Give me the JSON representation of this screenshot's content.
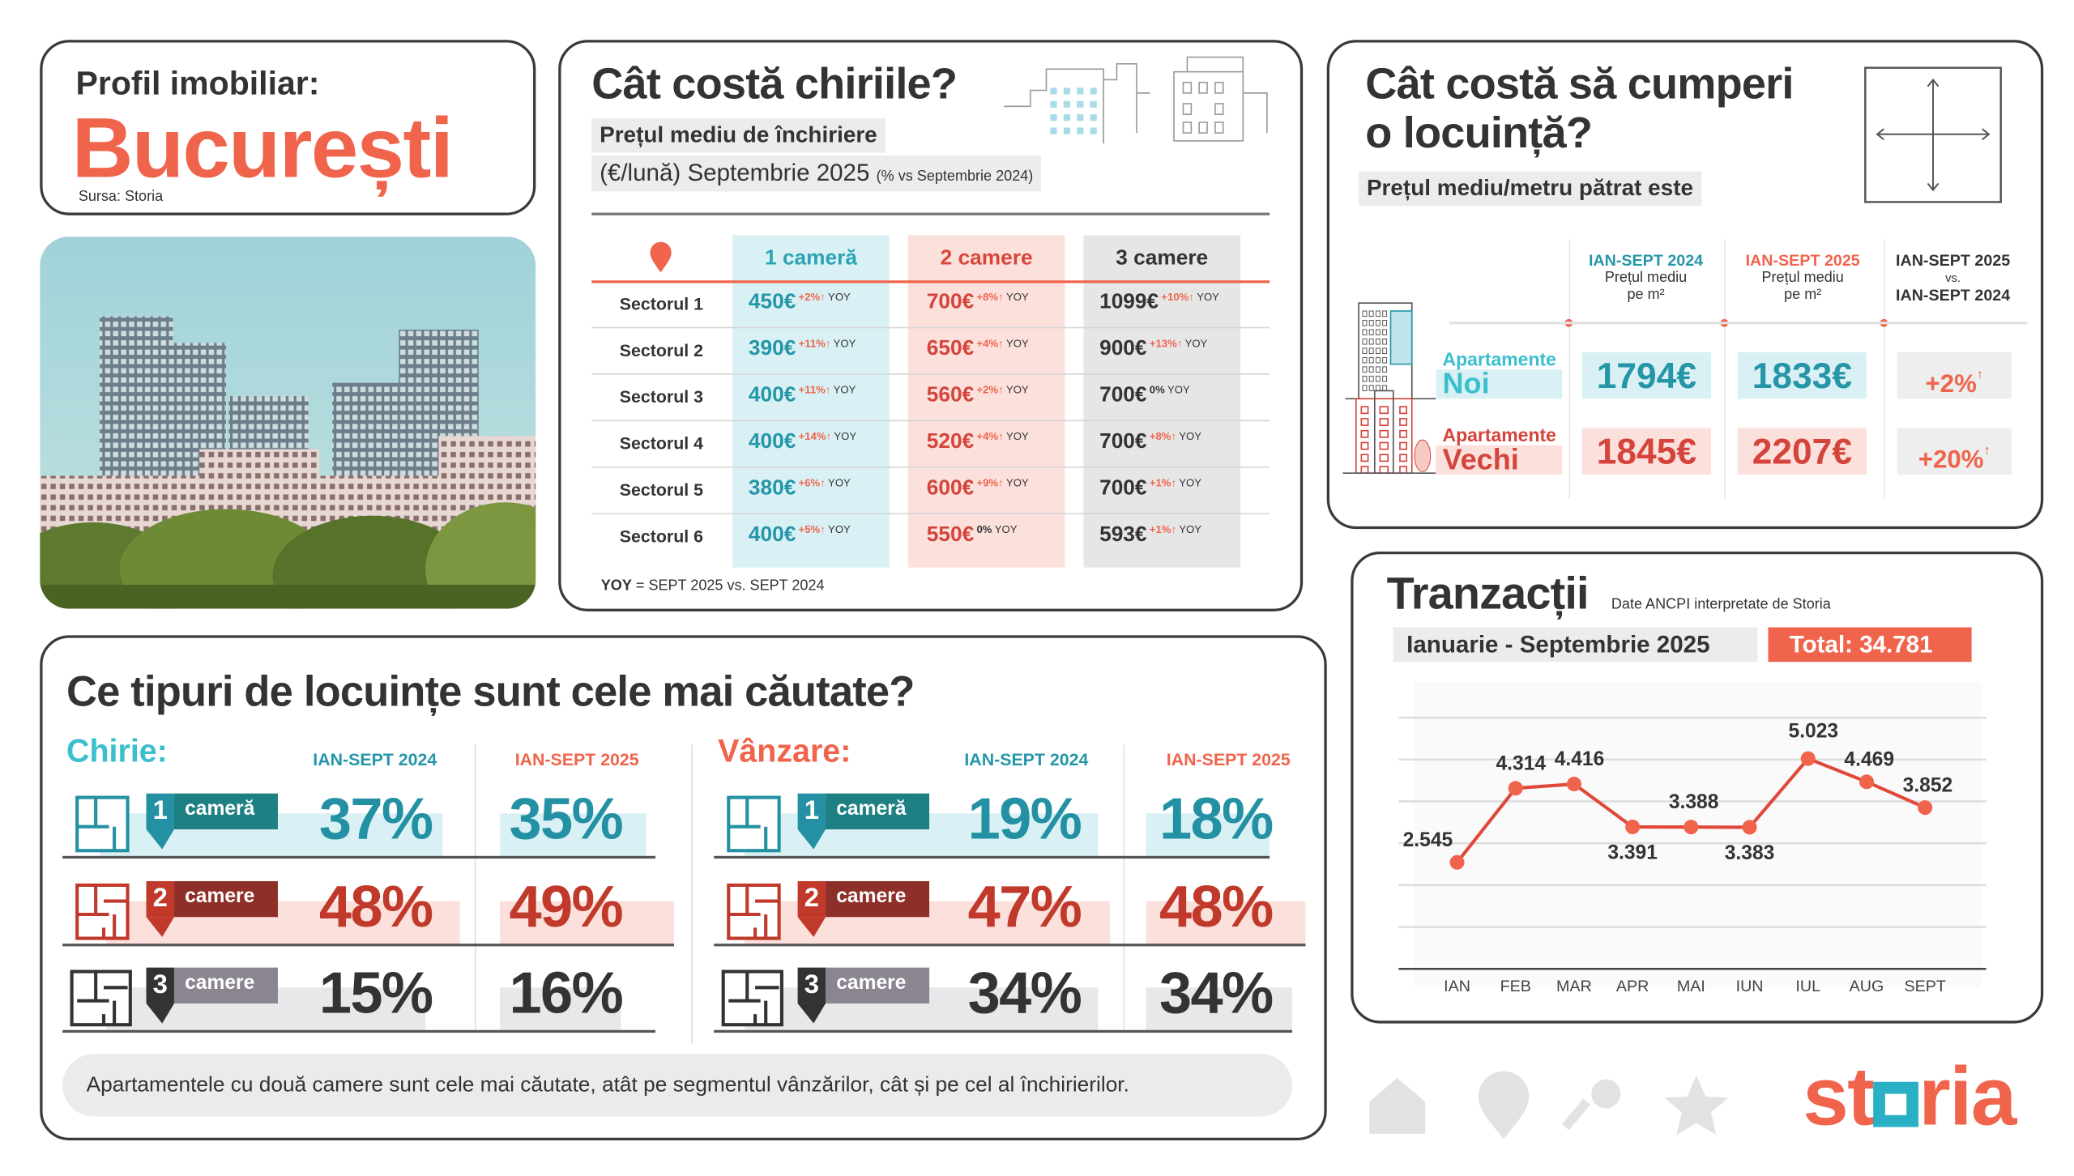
{
  "profile": {
    "label": "Profil imobiliar:",
    "city": "București",
    "source": "Sursa: Storia"
  },
  "rent": {
    "title": "Cât costă chiriile?",
    "label": "Prețul mediu de închiriere",
    "subtitle": "(€/lună) Septembrie 2025",
    "subtitle_note": "(% vs Septembrie 2024)",
    "columns": [
      "1 cameră",
      "2 camere",
      "3 camere"
    ],
    "rows": [
      {
        "sector": "Sectorul 1",
        "cells": [
          {
            "price": "450€",
            "change": "+2%↑",
            "yoy": "YOY"
          },
          {
            "price": "700€",
            "change": "+8%↑",
            "yoy": "YOY"
          },
          {
            "price": "1099€",
            "change": "+10%↑",
            "yoy": "YOY"
          }
        ]
      },
      {
        "sector": "Sectorul 2",
        "cells": [
          {
            "price": "390€",
            "change": "+11%↑",
            "yoy": "YOY"
          },
          {
            "price": "650€",
            "change": "+4%↑",
            "yoy": "YOY"
          },
          {
            "price": "900€",
            "change": "+13%↑",
            "yoy": "YOY"
          }
        ]
      },
      {
        "sector": "Sectorul 3",
        "cells": [
          {
            "price": "400€",
            "change": "+11%↑",
            "yoy": "YOY"
          },
          {
            "price": "560€",
            "change": "+2%↑",
            "yoy": "YOY"
          },
          {
            "price": "700€",
            "change": "0%",
            "yoy": "YOY"
          }
        ]
      },
      {
        "sector": "Sectorul 4",
        "cells": [
          {
            "price": "400€",
            "change": "+14%↑",
            "yoy": "YOY"
          },
          {
            "price": "520€",
            "change": "+4%↑",
            "yoy": "YOY"
          },
          {
            "price": "700€",
            "change": "+8%↑",
            "yoy": "YOY"
          }
        ]
      },
      {
        "sector": "Sectorul 5",
        "cells": [
          {
            "price": "380€",
            "change": "+6%↑",
            "yoy": "YOY"
          },
          {
            "price": "600€",
            "change": "+9%↑",
            "yoy": "YOY"
          },
          {
            "price": "700€",
            "change": "+1%↑",
            "yoy": "YOY"
          }
        ]
      },
      {
        "sector": "Sectorul 6",
        "cells": [
          {
            "price": "400€",
            "change": "+5%↑",
            "yoy": "YOY"
          },
          {
            "price": "550€",
            "change": "0%",
            "yoy": "YOY"
          },
          {
            "price": "593€",
            "change": "+1%↑",
            "yoy": "YOY"
          }
        ]
      }
    ],
    "footnote_key": "YOY",
    "footnote": "= SEPT 2025 vs. SEPT 2024"
  },
  "buy": {
    "title_line1": "Cât costă să cumperi",
    "title_line2": "o locuință?",
    "label": "Prețul mediu/metru pătrat este",
    "headers": [
      {
        "period": "IAN-SEPT 2024",
        "line1": "Prețul mediu",
        "line2": "pe m²"
      },
      {
        "period": "IAN-SEPT 2025",
        "line1": "Prețul mediu",
        "line2": "pe m²"
      },
      {
        "period": "IAN-SEPT 2025",
        "line1": "vs.",
        "line2": "IAN-SEPT 2024"
      }
    ],
    "rows": [
      {
        "label_top": "Apartamente",
        "label_main": "Noi",
        "v2024": "1794€",
        "v2025": "1833€",
        "change": "+2%",
        "arrow": "↑"
      },
      {
        "label_top": "Apartamente",
        "label_main": "Vechi",
        "v2024": "1845€",
        "v2025": "2207€",
        "change": "+20%",
        "arrow": "↑"
      }
    ]
  },
  "types": {
    "title": "Ce tipuri de locuințe sunt cele mai căutate?",
    "sections": [
      {
        "name": "Chirie:",
        "col_2024": "IAN-SEPT 2024",
        "col_2025": "IAN-SEPT 2025",
        "rows": [
          {
            "num": "1",
            "label": "cameră",
            "v2024": "37%",
            "v2025": "35%"
          },
          {
            "num": "2",
            "label": "camere",
            "v2024": "48%",
            "v2025": "49%"
          },
          {
            "num": "3",
            "label": "camere",
            "v2024": "15%",
            "v2025": "16%"
          }
        ]
      },
      {
        "name": "Vânzare:",
        "col_2024": "IAN-SEPT 2024",
        "col_2025": "IAN-SEPT 2025",
        "rows": [
          {
            "num": "1",
            "label": "cameră",
            "v2024": "19%",
            "v2025": "18%"
          },
          {
            "num": "2",
            "label": "camere",
            "v2024": "47%",
            "v2025": "48%"
          },
          {
            "num": "3",
            "label": "camere",
            "v2024": "34%",
            "v2025": "34%"
          }
        ]
      }
    ],
    "note": "Apartamentele cu două camere sunt cele mai căutate, atât pe segmentul vânzărilor, cât și pe cel al închirierilor."
  },
  "transactions": {
    "title": "Tranzacții",
    "source": "Date ANCPI interpretate de Storia",
    "period": "Ianuarie - Septembrie 2025",
    "total": "Total: 34.781"
  },
  "chart_data": {
    "type": "line",
    "categories": [
      "IAN",
      "FEB",
      "MAR",
      "APR",
      "MAI",
      "IUN",
      "IUL",
      "AUG",
      "SEPT"
    ],
    "values": [
      2545,
      4314,
      4416,
      3391,
      3388,
      3383,
      5023,
      4469,
      3852
    ],
    "data_labels": [
      "2.545",
      "4.314",
      "4.416",
      "3.391",
      "3.388",
      "3.383",
      "5.023",
      "4.469",
      "3.852"
    ],
    "ylim": [
      0,
      6000
    ],
    "grid": true,
    "color": "#e0483b"
  },
  "footer": {
    "icons": [
      "house-icon",
      "map-pin-icon",
      "key-icon",
      "star-icon"
    ],
    "logo": "storia"
  },
  "colors": {
    "accent_red": "#f0644c",
    "teal": "#2596a8",
    "dark_red": "#d4443a",
    "dark": "#333333"
  }
}
